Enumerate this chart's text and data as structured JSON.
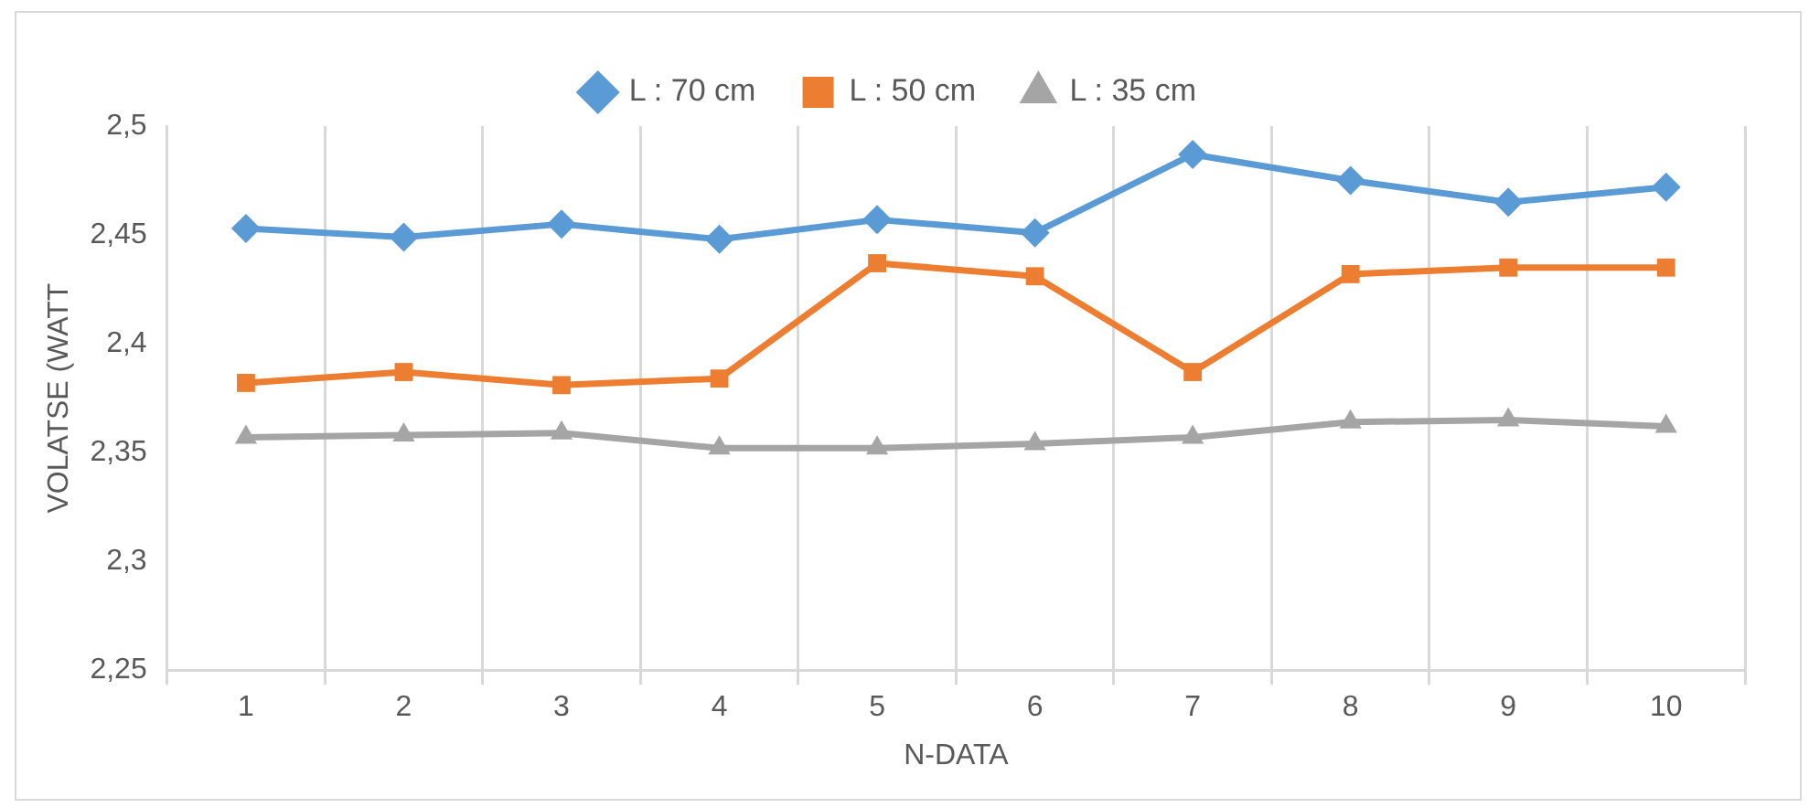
{
  "chart_data": {
    "type": "line",
    "xlabel": "N-DATA",
    "ylabel": "VOLATSE (WATT",
    "categories": [
      "1",
      "2",
      "3",
      "4",
      "5",
      "6",
      "7",
      "8",
      "9",
      "10"
    ],
    "series": [
      {
        "name": "L : 70 cm",
        "color": "#5b9bd5",
        "marker": "diamond",
        "values": [
          2.453,
          2.449,
          2.455,
          2.448,
          2.457,
          2.451,
          2.487,
          2.475,
          2.465,
          2.472
        ]
      },
      {
        "name": "L : 50 cm",
        "color": "#ed7d31",
        "marker": "square",
        "values": [
          2.382,
          2.387,
          2.381,
          2.384,
          2.437,
          2.431,
          2.387,
          2.432,
          2.435,
          2.435
        ]
      },
      {
        "name": "L : 35 cm",
        "color": "#a5a5a5",
        "marker": "triangle",
        "values": [
          2.357,
          2.358,
          2.359,
          2.352,
          2.352,
          2.354,
          2.357,
          2.364,
          2.365,
          2.362
        ]
      }
    ],
    "ylim": [
      2.25,
      2.5
    ],
    "yticks": [
      {
        "value": 2.25,
        "label": "2,25"
      },
      {
        "value": 2.3,
        "label": "2,3"
      },
      {
        "value": 2.35,
        "label": "2,35"
      },
      {
        "value": 2.4,
        "label": "2,4"
      },
      {
        "value": 2.45,
        "label": "2,45"
      },
      {
        "value": 2.5,
        "label": "2,5"
      }
    ],
    "grid": "x",
    "legend": "top"
  }
}
